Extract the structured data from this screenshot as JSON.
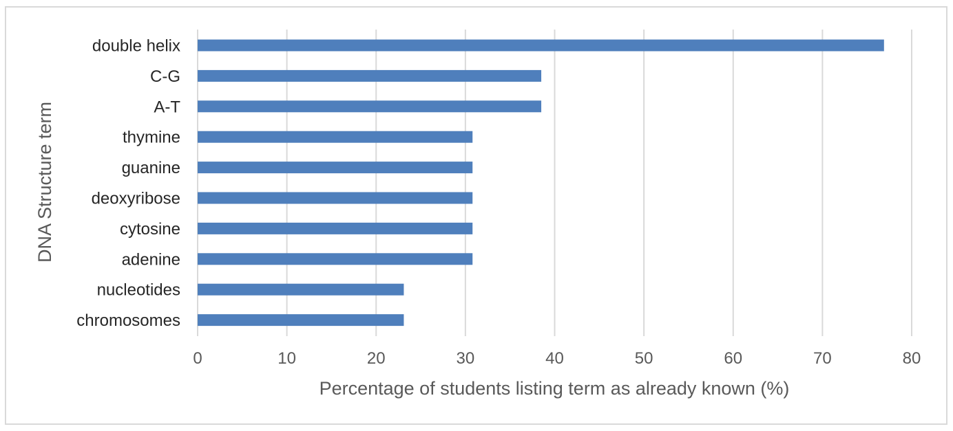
{
  "chart_data": {
    "type": "bar",
    "orientation": "horizontal",
    "categories": [
      "double helix",
      "C-G",
      "A-T",
      "thymine",
      "guanine",
      "deoxyribose",
      "cytosine",
      "adenine",
      "nucleotides",
      "chromosomes"
    ],
    "values": [
      76.9,
      38.5,
      38.5,
      30.8,
      30.8,
      30.8,
      30.8,
      30.8,
      23.1,
      23.1
    ],
    "xlabel": "Percentage of students listing term as already known (%)",
    "ylabel": "DNA Structure term",
    "xlim": [
      0,
      80
    ],
    "xticks": [
      "0",
      "10",
      "20",
      "30",
      "40",
      "50",
      "60",
      "70",
      "80"
    ],
    "grid": true,
    "legend": "none",
    "bar_color": "#4f7fbc",
    "grid_color": "#d9d9d9"
  }
}
